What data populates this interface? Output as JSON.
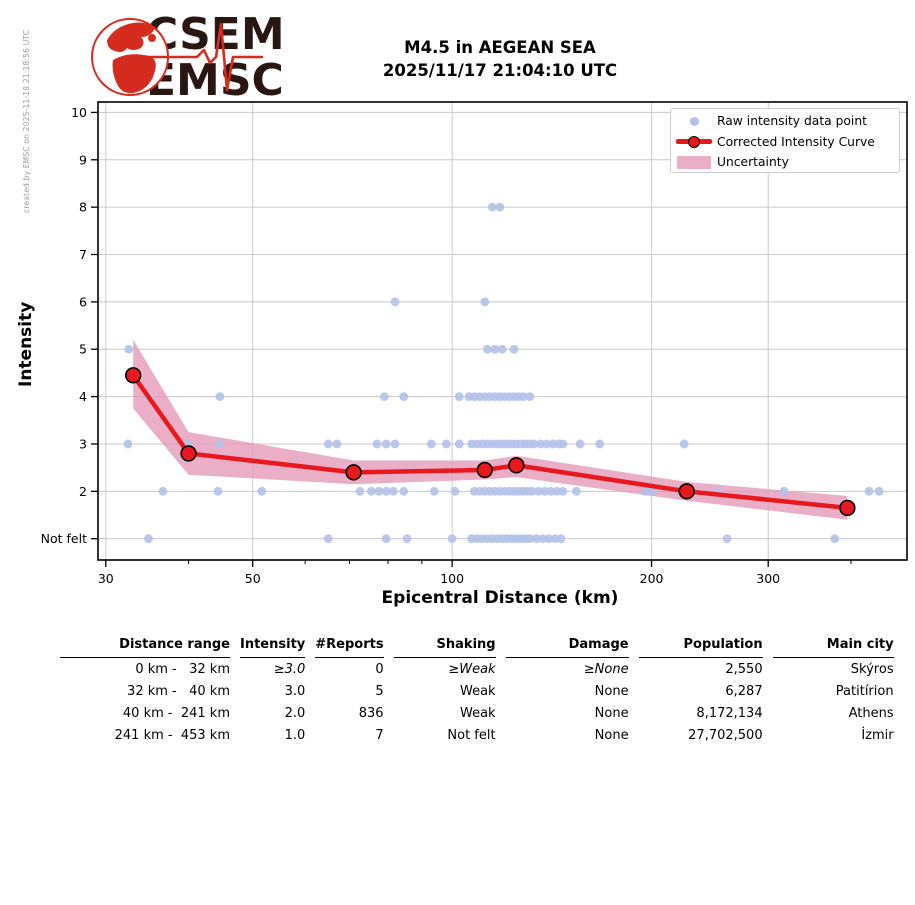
{
  "header": {
    "logo_line1": "CSEM",
    "logo_line2": "EMSC",
    "title_line1": "M4.5 in AEGEAN SEA",
    "title_line2": "2025/11/17 21:04:10 UTC",
    "watermark": "created by EMSC on 2025-11-18 21:18:56 UTC"
  },
  "chart_data": {
    "type": "scatter",
    "xlabel": "Epicentral Distance (km)",
    "ylabel": "Intensity",
    "x_scale": "log",
    "x_range": [
      29.2,
      486
    ],
    "y_range": [
      0.55,
      10.22
    ],
    "x_ticks": [
      30,
      50,
      100,
      200,
      300
    ],
    "x_minor_ticks": [
      40,
      60,
      70,
      80,
      90,
      400
    ],
    "y_ticks": [
      {
        "value": 1,
        "label": "Not felt"
      },
      {
        "value": 2,
        "label": "2"
      },
      {
        "value": 3,
        "label": "3"
      },
      {
        "value": 4,
        "label": "4"
      },
      {
        "value": 5,
        "label": "5"
      },
      {
        "value": 6,
        "label": "6"
      },
      {
        "value": 7,
        "label": "7"
      },
      {
        "value": 8,
        "label": "8"
      },
      {
        "value": 9,
        "label": "9"
      },
      {
        "value": 10,
        "label": "10"
      }
    ],
    "grid": true,
    "legend_position": "upper right",
    "legend": [
      {
        "label": "Raw intensity data point",
        "type": "point"
      },
      {
        "label": "Corrected Intensity Curve",
        "type": "line-marker"
      },
      {
        "label": "Uncertainty",
        "type": "band"
      }
    ],
    "colors": {
      "raw_point": "#b4c1e9",
      "curve": "#e8191c",
      "band": "#e59ab9",
      "grid": "#c9c9c9",
      "axis": "#000000"
    },
    "raw_points": [
      [
        115,
        8
      ],
      [
        118,
        8
      ],
      [
        82,
        6
      ],
      [
        112,
        6
      ],
      [
        32.5,
        5
      ],
      [
        113,
        5
      ],
      [
        116,
        5
      ],
      [
        119,
        5
      ],
      [
        124,
        5
      ],
      [
        34.8,
        4
      ],
      [
        44.6,
        4
      ],
      [
        79,
        4
      ],
      [
        84.5,
        4
      ],
      [
        102.5,
        4
      ],
      [
        106,
        4
      ],
      [
        108,
        4
      ],
      [
        110,
        4
      ],
      [
        112,
        4
      ],
      [
        114,
        4
      ],
      [
        116,
        4
      ],
      [
        118,
        4
      ],
      [
        120,
        4
      ],
      [
        122,
        4
      ],
      [
        124,
        4
      ],
      [
        126,
        4
      ],
      [
        128,
        4
      ],
      [
        131,
        4
      ],
      [
        32.4,
        3
      ],
      [
        40,
        3
      ],
      [
        44.6,
        3
      ],
      [
        65,
        3
      ],
      [
        67,
        3
      ],
      [
        77,
        3
      ],
      [
        79.5,
        3
      ],
      [
        82,
        3
      ],
      [
        93,
        3
      ],
      [
        98,
        3
      ],
      [
        102.5,
        3
      ],
      [
        107,
        3
      ],
      [
        109,
        3
      ],
      [
        111,
        3
      ],
      [
        113,
        3
      ],
      [
        115,
        3
      ],
      [
        117,
        3
      ],
      [
        119,
        3
      ],
      [
        121,
        3
      ],
      [
        123,
        3
      ],
      [
        125,
        3
      ],
      [
        127,
        3
      ],
      [
        129,
        3
      ],
      [
        131,
        3
      ],
      [
        133,
        3
      ],
      [
        136,
        3
      ],
      [
        139,
        3
      ],
      [
        142,
        3
      ],
      [
        145,
        3
      ],
      [
        147,
        3
      ],
      [
        156,
        3
      ],
      [
        167,
        3
      ],
      [
        224,
        3
      ],
      [
        36.6,
        2
      ],
      [
        44.3,
        2
      ],
      [
        51.6,
        2
      ],
      [
        72.6,
        2
      ],
      [
        75.5,
        2
      ],
      [
        77.5,
        2
      ],
      [
        79.5,
        2
      ],
      [
        81.5,
        2
      ],
      [
        84.5,
        2
      ],
      [
        94,
        2
      ],
      [
        101,
        2
      ],
      [
        108,
        2
      ],
      [
        110,
        2
      ],
      [
        112,
        2
      ],
      [
        114,
        2
      ],
      [
        116,
        2
      ],
      [
        118,
        2
      ],
      [
        120,
        2
      ],
      [
        122,
        2
      ],
      [
        124,
        2
      ],
      [
        126,
        2
      ],
      [
        128,
        2
      ],
      [
        130,
        2
      ],
      [
        132,
        2
      ],
      [
        135,
        2
      ],
      [
        138,
        2
      ],
      [
        141,
        2
      ],
      [
        144,
        2
      ],
      [
        147,
        2
      ],
      [
        154,
        2
      ],
      [
        196,
        2
      ],
      [
        201,
        2
      ],
      [
        252,
        2
      ],
      [
        317,
        2
      ],
      [
        426,
        2
      ],
      [
        441,
        2
      ],
      [
        34.8,
        1
      ],
      [
        65,
        1
      ],
      [
        79.5,
        1
      ],
      [
        85.5,
        1
      ],
      [
        100,
        1
      ],
      [
        107,
        1
      ],
      [
        109,
        1
      ],
      [
        111,
        1
      ],
      [
        113,
        1
      ],
      [
        115,
        1
      ],
      [
        117,
        1
      ],
      [
        119,
        1
      ],
      [
        121,
        1
      ],
      [
        123,
        1
      ],
      [
        125,
        1
      ],
      [
        127,
        1
      ],
      [
        129,
        1
      ],
      [
        131,
        1
      ],
      [
        134,
        1
      ],
      [
        137,
        1
      ],
      [
        140,
        1
      ],
      [
        143,
        1
      ],
      [
        146,
        1
      ],
      [
        260,
        1
      ],
      [
        378,
        1
      ]
    ],
    "corrected_curve": [
      [
        33,
        4.45
      ],
      [
        40,
        2.8
      ],
      [
        71,
        2.4
      ],
      [
        112,
        2.45
      ],
      [
        125,
        2.55
      ],
      [
        226,
        2.0
      ],
      [
        395,
        1.65
      ]
    ],
    "uncertainty_band": [
      [
        33,
        5.2,
        3.75
      ],
      [
        40,
        3.25,
        2.35
      ],
      [
        71,
        2.65,
        2.15
      ],
      [
        112,
        2.65,
        2.25
      ],
      [
        125,
        2.75,
        2.3
      ],
      [
        226,
        2.2,
        1.8
      ],
      [
        395,
        1.9,
        1.4
      ]
    ]
  },
  "table": {
    "headers": [
      "Distance range",
      "Intensity",
      "#Reports",
      "Shaking",
      "Damage",
      "Population",
      "Main city"
    ],
    "rows": [
      {
        "range": "0 km -   32 km",
        "intensity": "≥3.0",
        "reports": "0",
        "shaking": "≥Weak",
        "damage": "≥None",
        "population": "2,550",
        "city": "Skýros",
        "min_row": true
      },
      {
        "range": "32 km -   40 km",
        "intensity": "3.0",
        "reports": "5",
        "shaking": "Weak",
        "damage": "None",
        "population": "6,287",
        "city": "Patitírion",
        "min_row": false
      },
      {
        "range": "40 km -  241 km",
        "intensity": "2.0",
        "reports": "836",
        "shaking": "Weak",
        "damage": "None",
        "population": "8,172,134",
        "city": "Athens",
        "min_row": false
      },
      {
        "range": "241 km -  453 km",
        "intensity": "1.0",
        "reports": "7",
        "shaking": "Not felt",
        "damage": "None",
        "population": "27,702,500",
        "city": "İzmir",
        "min_row": false
      }
    ]
  }
}
